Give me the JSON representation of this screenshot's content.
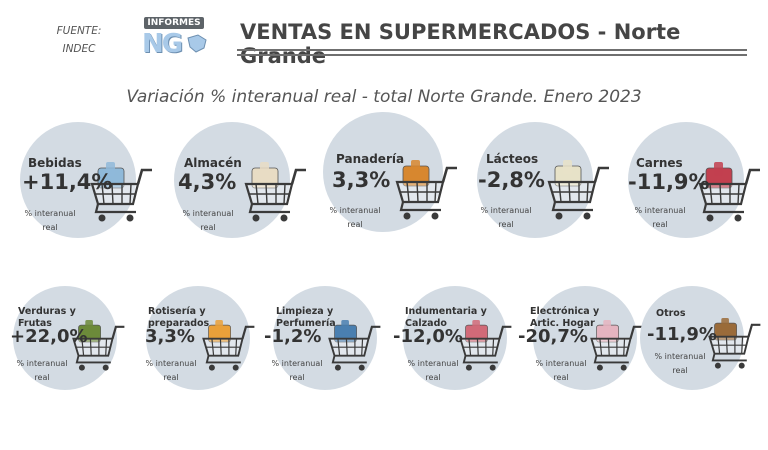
{
  "source": {
    "line1": "FUENTE:",
    "line2": "INDEC"
  },
  "logo": {
    "top": "INFORMES",
    "main": "NG"
  },
  "title": "VENTAS EN SUPERMERCADOS - Norte Grande",
  "subtitle": "Variación % interanual real - total Norte Grande. Enero 2023",
  "note_line1": "% interanual",
  "note_line2": "real",
  "colors": {
    "circle": "#d3dbe3",
    "text": "#333333",
    "cart": "#3a3a3a"
  },
  "chart_data": {
    "type": "table",
    "title": "Variación % interanual real - total Norte Grande. Enero 2023",
    "unit": "% interanual real",
    "categories": [
      "Bebidas",
      "Almacén",
      "Panadería",
      "Lácteos",
      "Carnes",
      "Verduras y Frutas",
      "Rotisería y preparados",
      "Limpieza y Perfumería",
      "Indumentaria y Calzado",
      "Electrónica y Artic. Hogar",
      "Otros"
    ],
    "category_lines": [
      [
        "Bebidas"
      ],
      [
        "Almacén"
      ],
      [
        "Panadería"
      ],
      [
        "Lácteos"
      ],
      [
        "Carnes"
      ],
      [
        "Verduras y",
        "Frutas"
      ],
      [
        "Rotisería y",
        "preparados"
      ],
      [
        "Limpieza y",
        "Perfumería"
      ],
      [
        "Indumentaria y",
        "Calzado"
      ],
      [
        "Electrónica y",
        "Artic. Hogar"
      ],
      [
        "Otros"
      ]
    ],
    "values": [
      11.4,
      4.3,
      3.3,
      -2.8,
      -11.9,
      22.0,
      3.3,
      -1.2,
      -12.0,
      -20.7,
      -11.9
    ],
    "value_labels": [
      "+11,4%",
      "4,3%",
      "3,3%",
      "-2,8%",
      "-11,9%",
      "+22,0%",
      "3,3%",
      "-1,2%",
      "-12,0%",
      "-20,7%",
      "-11,9%"
    ],
    "icons": [
      "bottles-icon",
      "pantry-box-icon",
      "bread-icon",
      "milk-icon",
      "meat-icon",
      "vegetables-icon",
      "rotisserie-icon",
      "cleaning-products-icon",
      "clothing-icon",
      "appliance-icon",
      "boxes-icon"
    ]
  }
}
